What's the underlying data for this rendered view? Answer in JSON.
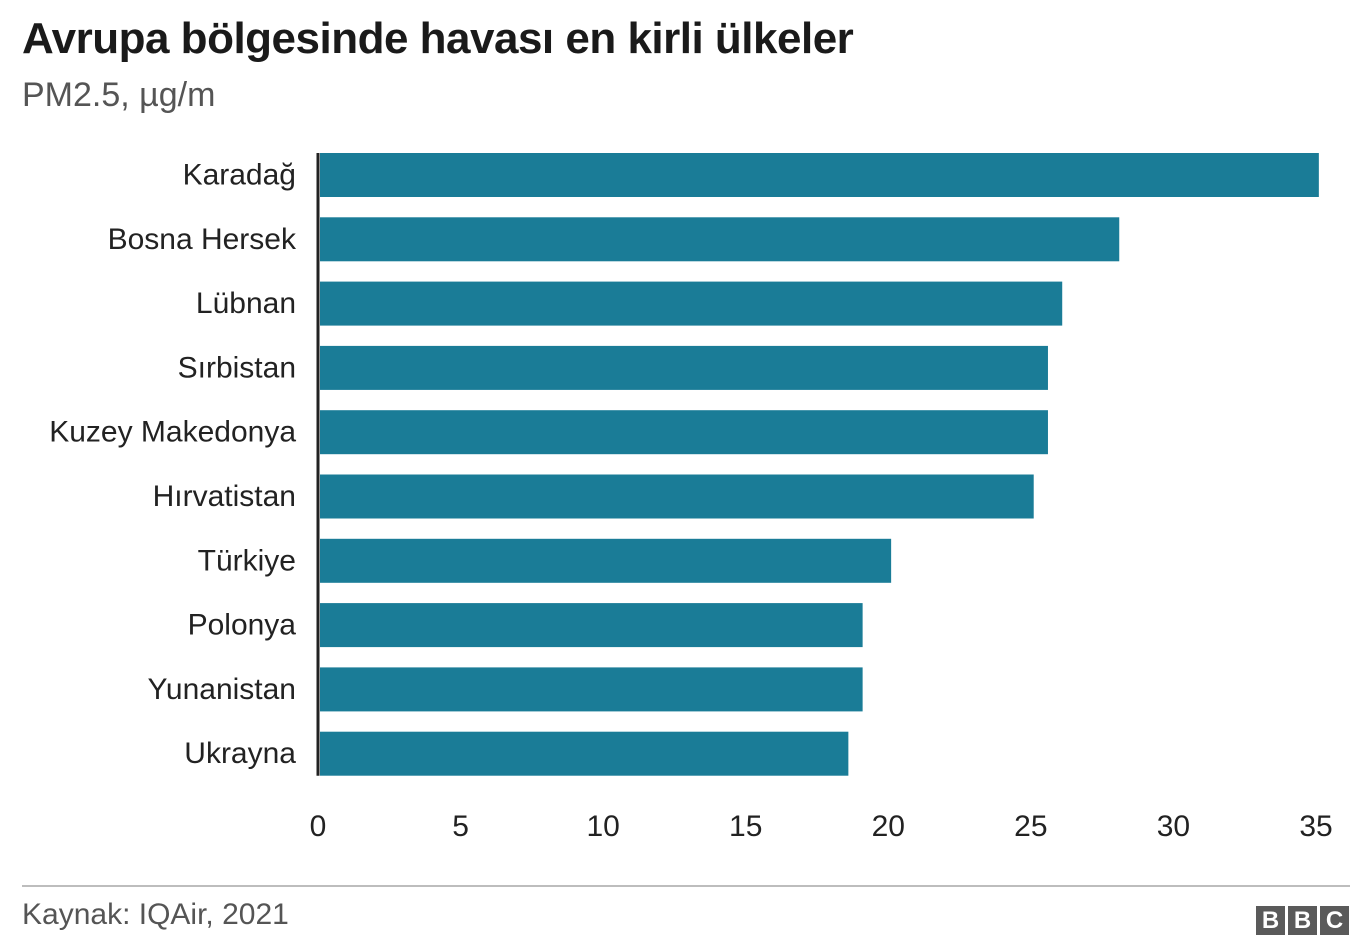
{
  "title": "Avrupa bölgesinde havası en kirli ülkeler",
  "subtitle": "PM2.5, µg/m",
  "source": "Kaynak: IQAir, 2021",
  "logo": [
    "B",
    "B",
    "C"
  ],
  "colors": {
    "bar": "#1a7c97",
    "axis": "#222222",
    "text": "#222222"
  },
  "chart_data": {
    "type": "bar",
    "orientation": "horizontal",
    "title": "Avrupa bölgesinde havası en kirli ülkeler",
    "subtitle": "PM2.5, µg/m",
    "xlabel": "",
    "ylabel": "",
    "categories": [
      "Karadağ",
      "Bosna Hersek",
      "Lübnan",
      "Sırbistan",
      "Kuzey Makedonya",
      "Hırvatistan",
      "Türkiye",
      "Polonya",
      "Yunanistan",
      "Ukrayna"
    ],
    "values": [
      35.1,
      28.1,
      26.1,
      25.6,
      25.6,
      25.1,
      20.1,
      19.1,
      19.1,
      18.6
    ],
    "xlim": [
      0,
      35
    ],
    "xticks": [
      0,
      5,
      10,
      15,
      20,
      25,
      30,
      35
    ],
    "grid": false,
    "legend": "none"
  }
}
